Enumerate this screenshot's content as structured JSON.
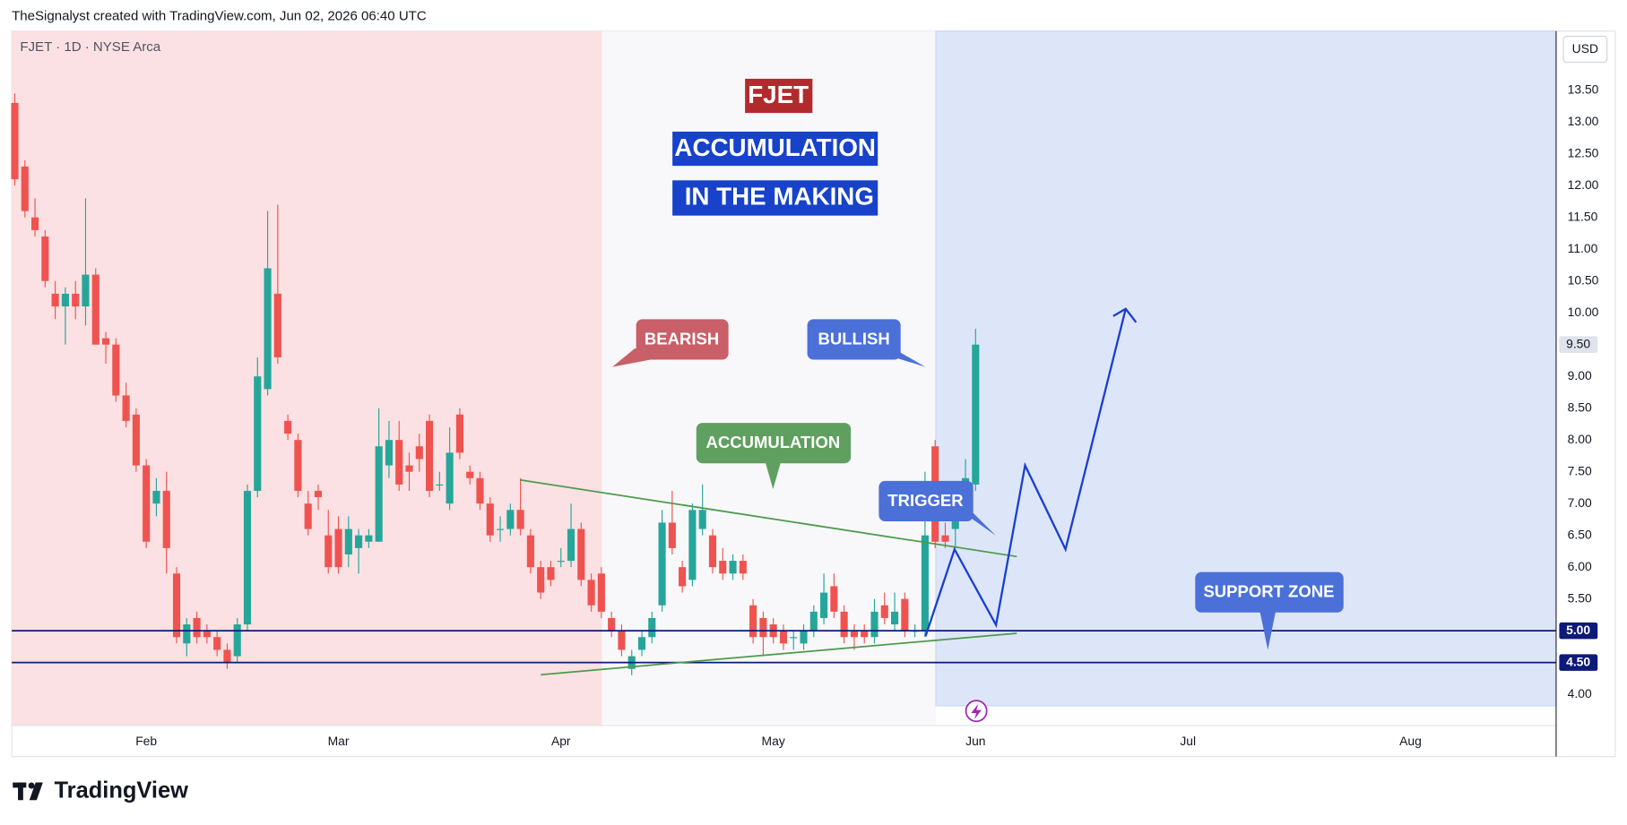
{
  "header": {
    "text": "TheSignalyst created with TradingView.com, Jun 02, 2026 06:40 UTC"
  },
  "footer": {
    "brand": "TradingView"
  },
  "chart_data": {
    "type": "candlestick",
    "symbol_label": "FJET · 1D · NYSE Arca",
    "currency": "USD",
    "up_color": "#26a69a",
    "down_color": "#ef5350",
    "open": [
      13.3,
      12.3,
      11.5,
      11.2,
      10.3,
      10.1,
      10.3,
      10.1,
      10.6,
      9.6,
      9.5,
      8.7,
      8.4,
      7.6,
      7.0,
      7.2,
      5.9,
      4.8,
      5.2,
      5.0,
      4.9,
      4.7,
      4.6,
      5.1,
      7.2,
      8.8,
      10.3,
      8.3,
      8.0,
      7.0,
      7.2,
      6.5,
      6.6,
      6.2,
      6.3,
      6.4,
      6.4,
      7.6,
      8.0,
      7.6,
      7.9,
      8.3,
      7.3,
      7.0,
      8.4,
      7.5,
      7.4,
      7.0,
      6.6,
      6.6,
      6.9,
      6.5,
      6.0,
      6.0,
      6.1,
      6.1,
      6.6,
      5.8,
      5.9,
      5.2,
      5.0,
      4.4,
      4.7,
      4.9,
      5.4,
      6.7,
      6.0,
      5.8,
      6.6,
      6.5,
      6.1,
      5.9,
      6.1,
      5.4,
      5.2,
      5.1,
      5.0,
      4.9,
      4.8,
      5.0,
      5.2,
      5.7,
      5.3,
      5.0,
      5.0,
      4.9,
      5.4,
      5.1,
      5.5,
      5.0,
      5.0,
      7.9,
      6.5,
      6.6,
      7.2,
      7.3
    ],
    "high": [
      13.45,
      12.4,
      11.8,
      11.3,
      10.5,
      10.4,
      10.5,
      11.8,
      10.7,
      9.7,
      9.6,
      8.9,
      8.5,
      7.7,
      7.4,
      7.5,
      6.0,
      5.2,
      5.3,
      5.1,
      5.0,
      4.8,
      5.2,
      7.3,
      9.3,
      11.6,
      11.7,
      8.4,
      8.1,
      7.2,
      7.3,
      6.9,
      6.8,
      6.8,
      6.6,
      6.6,
      8.5,
      8.3,
      8.3,
      7.8,
      8.1,
      8.4,
      7.5,
      8.2,
      8.5,
      7.6,
      7.5,
      7.1,
      6.8,
      7.0,
      7.4,
      6.6,
      6.1,
      6.1,
      6.3,
      7.0,
      6.7,
      5.9,
      6.0,
      5.3,
      5.1,
      4.7,
      5.0,
      5.3,
      6.9,
      7.2,
      6.1,
      7.0,
      7.3,
      6.6,
      6.3,
      6.2,
      6.2,
      5.5,
      5.3,
      5.2,
      5.1,
      5.0,
      5.1,
      5.4,
      5.9,
      5.9,
      5.4,
      5.1,
      5.1,
      5.5,
      5.6,
      5.6,
      5.6,
      5.1,
      7.5,
      8.0,
      6.7,
      7.0,
      7.7,
      9.75
    ],
    "low": [
      12.0,
      11.5,
      11.2,
      10.4,
      9.9,
      9.5,
      9.9,
      9.8,
      9.5,
      9.2,
      8.6,
      8.2,
      7.5,
      6.3,
      6.8,
      5.9,
      4.8,
      4.6,
      4.8,
      4.8,
      4.6,
      4.4,
      4.5,
      5.0,
      7.1,
      8.7,
      9.2,
      8.0,
      7.1,
      6.5,
      6.9,
      5.9,
      5.9,
      6.0,
      5.9,
      6.3,
      6.4,
      7.4,
      7.2,
      7.2,
      7.5,
      7.1,
      7.2,
      6.9,
      7.7,
      7.3,
      6.9,
      6.4,
      6.4,
      6.5,
      6.5,
      5.9,
      5.5,
      5.7,
      6.0,
      6.0,
      5.7,
      5.3,
      5.2,
      4.9,
      4.6,
      4.3,
      4.6,
      4.8,
      5.3,
      6.2,
      5.6,
      5.7,
      6.5,
      5.9,
      5.8,
      5.8,
      5.8,
      4.8,
      4.6,
      4.8,
      4.7,
      4.7,
      4.7,
      4.9,
      5.1,
      5.2,
      4.8,
      4.7,
      4.8,
      4.8,
      5.1,
      5.0,
      4.9,
      4.9,
      4.9,
      6.3,
      6.3,
      6.3,
      7.1,
      7.2
    ],
    "close": [
      12.1,
      11.6,
      11.3,
      10.5,
      10.1,
      10.3,
      10.1,
      10.6,
      9.5,
      9.5,
      8.7,
      8.3,
      7.6,
      6.4,
      7.2,
      6.3,
      4.9,
      5.1,
      4.9,
      4.9,
      4.7,
      4.5,
      5.1,
      7.2,
      9.0,
      10.7,
      9.3,
      8.1,
      7.2,
      6.6,
      7.1,
      6.0,
      6.0,
      6.6,
      6.5,
      6.5,
      7.9,
      8.0,
      7.3,
      7.5,
      7.7,
      7.2,
      7.3,
      7.8,
      7.8,
      7.4,
      7.0,
      6.5,
      6.6,
      6.9,
      6.6,
      6.0,
      5.6,
      5.8,
      6.1,
      6.6,
      5.8,
      5.4,
      5.3,
      5.0,
      4.7,
      4.6,
      4.9,
      5.2,
      6.7,
      6.3,
      5.7,
      6.9,
      6.9,
      6.0,
      5.9,
      6.1,
      5.9,
      4.9,
      4.9,
      4.9,
      4.8,
      4.9,
      5.0,
      5.3,
      5.6,
      5.3,
      4.9,
      4.9,
      4.9,
      5.3,
      5.2,
      5.3,
      5.0,
      5.0,
      6.5,
      6.4,
      6.4,
      6.8,
      7.4,
      9.5
    ],
    "xlim": [
      -0.3,
      152.4
    ],
    "ylim": [
      3.51,
      14.43
    ],
    "xticks": [
      {
        "value": 13,
        "label": "Feb"
      },
      {
        "value": 32,
        "label": "Mar"
      },
      {
        "value": 54,
        "label": "Apr"
      },
      {
        "value": 75,
        "label": "May"
      },
      {
        "value": 95,
        "label": "Jun"
      },
      {
        "value": 116,
        "label": "Jul"
      },
      {
        "value": 138,
        "label": "Aug"
      }
    ],
    "yticks": [
      {
        "value": 4,
        "label": "4.00"
      },
      {
        "value": 5.5,
        "label": "5.50"
      },
      {
        "value": 6,
        "label": "6.00"
      },
      {
        "value": 6.5,
        "label": "6.50"
      },
      {
        "value": 7,
        "label": "7.00"
      },
      {
        "value": 7.5,
        "label": "7.50"
      },
      {
        "value": 8,
        "label": "8.00"
      },
      {
        "value": 8.5,
        "label": "8.50"
      },
      {
        "value": 9,
        "label": "9.00"
      },
      {
        "value": 10,
        "label": "10.00"
      },
      {
        "value": 10.5,
        "label": "10.50"
      },
      {
        "value": 11,
        "label": "11.00"
      },
      {
        "value": 11.5,
        "label": "11.50"
      },
      {
        "value": 12,
        "label": "12.00"
      },
      {
        "value": 12.5,
        "label": "12.50"
      },
      {
        "value": 13,
        "label": "13.00"
      },
      {
        "value": 13.5,
        "label": "13.50"
      }
    ],
    "grid": false,
    "levels": [
      {
        "value": 5,
        "label": "5.00"
      },
      {
        "value": 4.5,
        "label": "4.50"
      }
    ],
    "last_price": {
      "value": 9.5,
      "label": "9.50"
    },
    "annotations": [
      "FJET",
      "ACCUMULATION",
      "IN THE MAKING",
      "BEARISH",
      "BULLISH",
      "ACCUMULATION",
      "TRIGGER",
      "SUPPORT ZONE"
    ]
  }
}
